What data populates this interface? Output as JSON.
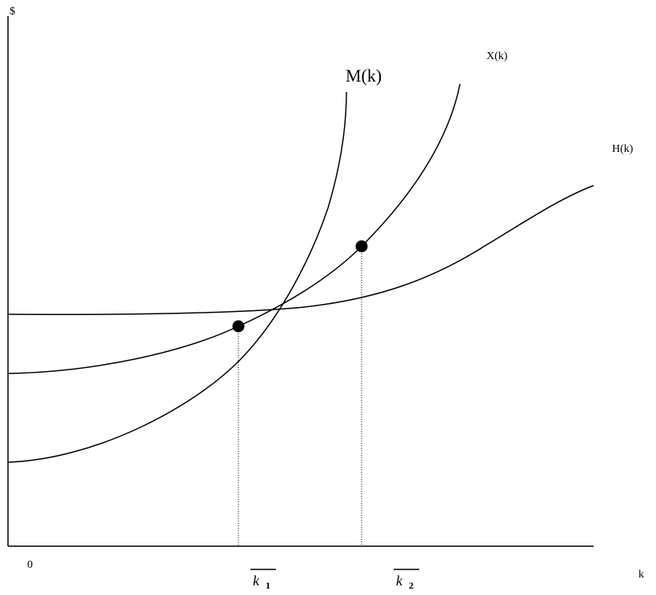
{
  "axes": {
    "y_label": "$",
    "x_label": "k",
    "origin_label": "0"
  },
  "curves": [
    {
      "label": "M(k)"
    },
    {
      "label": "X(k)"
    },
    {
      "label": "H(k)"
    }
  ],
  "points": [
    {
      "label": {
        "base": "k",
        "sub": "1"
      }
    },
    {
      "label": {
        "base": "k",
        "sub": "2"
      }
    }
  ]
}
